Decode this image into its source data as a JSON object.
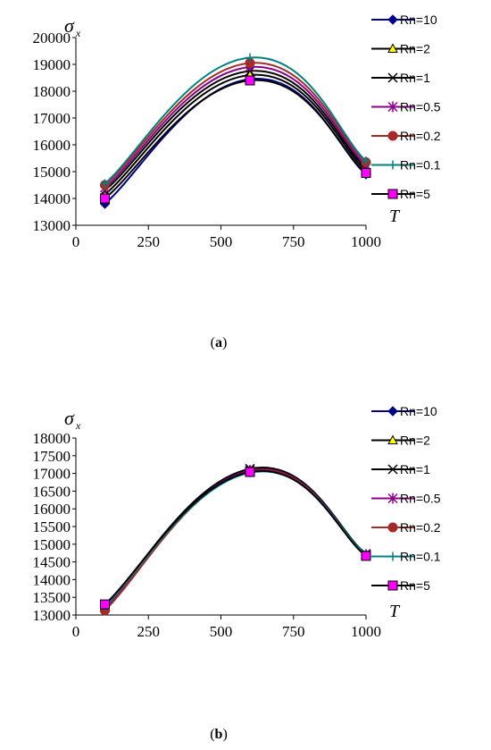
{
  "chart_data": [
    {
      "type": "line",
      "caption": "(a)",
      "ylabel_symbol": "σ",
      "ylabel_sub": "x",
      "xlabel": "T",
      "x_ticks": [
        0,
        250,
        500,
        750,
        1000
      ],
      "y_ticks": [
        13000,
        14000,
        15000,
        16000,
        17000,
        18000,
        19000,
        20000
      ],
      "xlim": [
        0,
        1000
      ],
      "ylim": [
        13000,
        20000
      ],
      "legend_position": "right",
      "series": [
        {
          "name": "Rn=10",
          "color": "#00008B",
          "marker": "diamond",
          "x": [
            100,
            600,
            1000
          ],
          "y": [
            13800,
            18450,
            14900
          ]
        },
        {
          "name": "Rn=2",
          "color": "#000000",
          "marker": "triangle",
          "x": [
            100,
            600,
            1000
          ],
          "y": [
            14150,
            18600,
            15050
          ]
        },
        {
          "name": "Rn=1",
          "color": "#000000",
          "marker": "x",
          "x": [
            100,
            600,
            1000
          ],
          "y": [
            14300,
            18750,
            15150
          ]
        },
        {
          "name": "Rn=0.5",
          "color": "#8B008B",
          "marker": "star",
          "x": [
            100,
            600,
            1000
          ],
          "y": [
            14400,
            18900,
            15250
          ]
        },
        {
          "name": "Rn=0.2",
          "color": "#A52A2A",
          "marker": "circle",
          "x": [
            100,
            600,
            1000
          ],
          "y": [
            14500,
            19050,
            15350
          ]
        },
        {
          "name": "Rn=0.1",
          "color": "#008080",
          "marker": "plus",
          "x": [
            100,
            600,
            1000
          ],
          "y": [
            14550,
            19250,
            15400
          ]
        },
        {
          "name": "Rn=5",
          "color": "#000000",
          "marker": "square",
          "fill": "#FF00FF",
          "x": [
            100,
            600,
            1000
          ],
          "y": [
            14000,
            18400,
            14950
          ]
        }
      ]
    },
    {
      "type": "line",
      "caption": "(b)",
      "ylabel_symbol": "σ",
      "ylabel_sub": "x",
      "xlabel": "T",
      "x_ticks": [
        0,
        250,
        500,
        750,
        1000
      ],
      "y_ticks": [
        13000,
        13500,
        14000,
        14500,
        15000,
        15500,
        16000,
        16500,
        17000,
        17500,
        18000
      ],
      "xlim": [
        0,
        1000
      ],
      "ylim": [
        13000,
        18000
      ],
      "legend_position": "right",
      "series": [
        {
          "name": "Rn=10",
          "color": "#00008B",
          "marker": "diamond",
          "x": [
            100,
            600,
            1000
          ],
          "y": [
            13250,
            17080,
            14700
          ]
        },
        {
          "name": "Rn=2",
          "color": "#000000",
          "marker": "triangle",
          "x": [
            100,
            600,
            1000
          ],
          "y": [
            13220,
            17100,
            14720
          ]
        },
        {
          "name": "Rn=1",
          "color": "#000000",
          "marker": "x",
          "x": [
            100,
            600,
            1000
          ],
          "y": [
            13250,
            17130,
            14730
          ]
        },
        {
          "name": "Rn=0.5",
          "color": "#8B008B",
          "marker": "star",
          "x": [
            100,
            600,
            1000
          ],
          "y": [
            13200,
            17080,
            14700
          ]
        },
        {
          "name": "Rn=0.2",
          "color": "#A52A2A",
          "marker": "circle",
          "x": [
            100,
            600,
            1000
          ],
          "y": [
            13130,
            17050,
            14680
          ]
        },
        {
          "name": "Rn=0.1",
          "color": "#008080",
          "marker": "plus",
          "x": [
            100,
            600,
            1000
          ],
          "y": [
            13250,
            17020,
            14720
          ]
        },
        {
          "name": "Rn=5",
          "color": "#000000",
          "marker": "square",
          "fill": "#FF00FF",
          "x": [
            100,
            600,
            1000
          ],
          "y": [
            13300,
            17040,
            14670
          ]
        }
      ]
    }
  ]
}
